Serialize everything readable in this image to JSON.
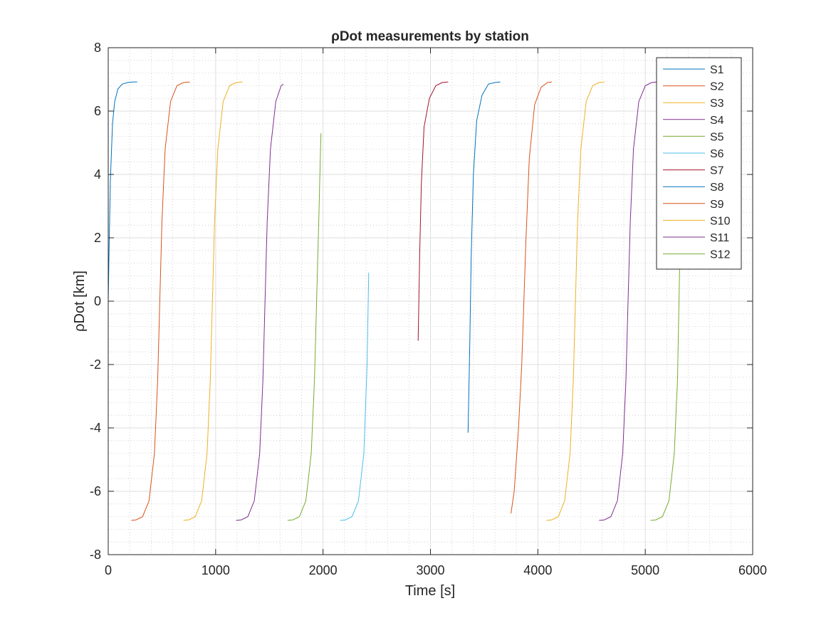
{
  "chart_data": {
    "type": "line",
    "title": "ρDot measurements by station",
    "xlabel": "Time [s]",
    "ylabel": "ρDot [km]",
    "xlim": [
      0,
      6000
    ],
    "ylim": [
      -8,
      8
    ],
    "xticks": [
      "0",
      "1000",
      "2000",
      "3000",
      "4000",
      "5000",
      "6000"
    ],
    "yticks": [
      "-8",
      "-6",
      "-4",
      "-2",
      "0",
      "2",
      "4",
      "6",
      "8"
    ],
    "grid": true,
    "minor_grid": true,
    "legend_position": "top-right",
    "series": [
      {
        "name": "S1",
        "color": "#0072BD",
        "x": [
          0,
          10,
          20,
          40,
          60,
          90,
          130,
          180,
          230,
          270
        ],
        "y": [
          0.0,
          2.0,
          3.8,
          5.6,
          6.3,
          6.7,
          6.85,
          6.9,
          6.92,
          6.92
        ]
      },
      {
        "name": "S2",
        "color": "#D95319",
        "x": [
          215,
          260,
          320,
          380,
          430,
          460,
          480,
          500,
          530,
          580,
          640,
          700,
          760
        ],
        "y": [
          -6.92,
          -6.9,
          -6.8,
          -6.3,
          -4.8,
          -2.5,
          0.0,
          2.5,
          4.8,
          6.3,
          6.8,
          6.9,
          6.92
        ]
      },
      {
        "name": "S3",
        "color": "#EDB120",
        "x": [
          700,
          750,
          810,
          870,
          920,
          950,
          970,
          990,
          1020,
          1070,
          1130,
          1190,
          1250
        ],
        "y": [
          -6.92,
          -6.9,
          -6.8,
          -6.3,
          -4.8,
          -2.5,
          0.0,
          2.5,
          4.8,
          6.3,
          6.8,
          6.9,
          6.92
        ]
      },
      {
        "name": "S4",
        "color": "#7E2F8E",
        "x": [
          1190,
          1240,
          1300,
          1360,
          1410,
          1440,
          1460,
          1480,
          1510,
          1560,
          1610,
          1630
        ],
        "y": [
          -6.92,
          -6.9,
          -6.8,
          -6.3,
          -4.8,
          -2.5,
          0.0,
          2.5,
          4.8,
          6.3,
          6.8,
          6.85
        ]
      },
      {
        "name": "S5",
        "color": "#77AC30",
        "x": [
          1670,
          1720,
          1780,
          1840,
          1890,
          1920,
          1940,
          1960,
          1980
        ],
        "y": [
          -6.92,
          -6.9,
          -6.8,
          -6.3,
          -4.8,
          -2.5,
          0.0,
          2.5,
          5.3
        ]
      },
      {
        "name": "S6",
        "color": "#4DBEEE",
        "x": [
          2160,
          2210,
          2270,
          2330,
          2380,
          2410,
          2425
        ],
        "y": [
          -6.92,
          -6.9,
          -6.8,
          -6.3,
          -4.8,
          -2.0,
          0.9
        ]
      },
      {
        "name": "S7",
        "color": "#A2142F",
        "x": [
          2885,
          2900,
          2915,
          2940,
          2990,
          3050,
          3110,
          3165
        ],
        "y": [
          -1.25,
          1.5,
          3.7,
          5.5,
          6.4,
          6.8,
          6.9,
          6.92
        ]
      },
      {
        "name": "S8",
        "color": "#0072BD",
        "x": [
          3350,
          3365,
          3380,
          3400,
          3430,
          3480,
          3540,
          3600,
          3650
        ],
        "y": [
          -4.15,
          -1.5,
          1.5,
          4.0,
          5.7,
          6.5,
          6.85,
          6.9,
          6.92
        ]
      },
      {
        "name": "S9",
        "color": "#D95319",
        "x": [
          3750,
          3780,
          3820,
          3850,
          3870,
          3890,
          3920,
          3970,
          4030,
          4090,
          4130
        ],
        "y": [
          -6.7,
          -6.0,
          -4.0,
          -2.0,
          0.0,
          2.0,
          4.5,
          6.2,
          6.75,
          6.9,
          6.92
        ]
      },
      {
        "name": "S10",
        "color": "#EDB120",
        "x": [
          4080,
          4130,
          4190,
          4250,
          4300,
          4330,
          4350,
          4370,
          4400,
          4450,
          4510,
          4570,
          4620
        ],
        "y": [
          -6.92,
          -6.9,
          -6.8,
          -6.3,
          -4.8,
          -2.5,
          0.0,
          2.5,
          4.8,
          6.3,
          6.8,
          6.9,
          6.92
        ]
      },
      {
        "name": "S11",
        "color": "#7E2F8E",
        "x": [
          4570,
          4620,
          4680,
          4740,
          4790,
          4820,
          4840,
          4860,
          4890,
          4940,
          5000,
          5060,
          5110
        ],
        "y": [
          -6.92,
          -6.9,
          -6.8,
          -6.3,
          -4.8,
          -2.5,
          0.0,
          2.5,
          4.8,
          6.3,
          6.8,
          6.9,
          6.92
        ]
      },
      {
        "name": "S12",
        "color": "#77AC30",
        "x": [
          5050,
          5100,
          5160,
          5220,
          5270,
          5300,
          5320
        ],
        "y": [
          -6.92,
          -6.9,
          -6.8,
          -6.3,
          -4.8,
          -2.5,
          1.0
        ]
      }
    ]
  }
}
